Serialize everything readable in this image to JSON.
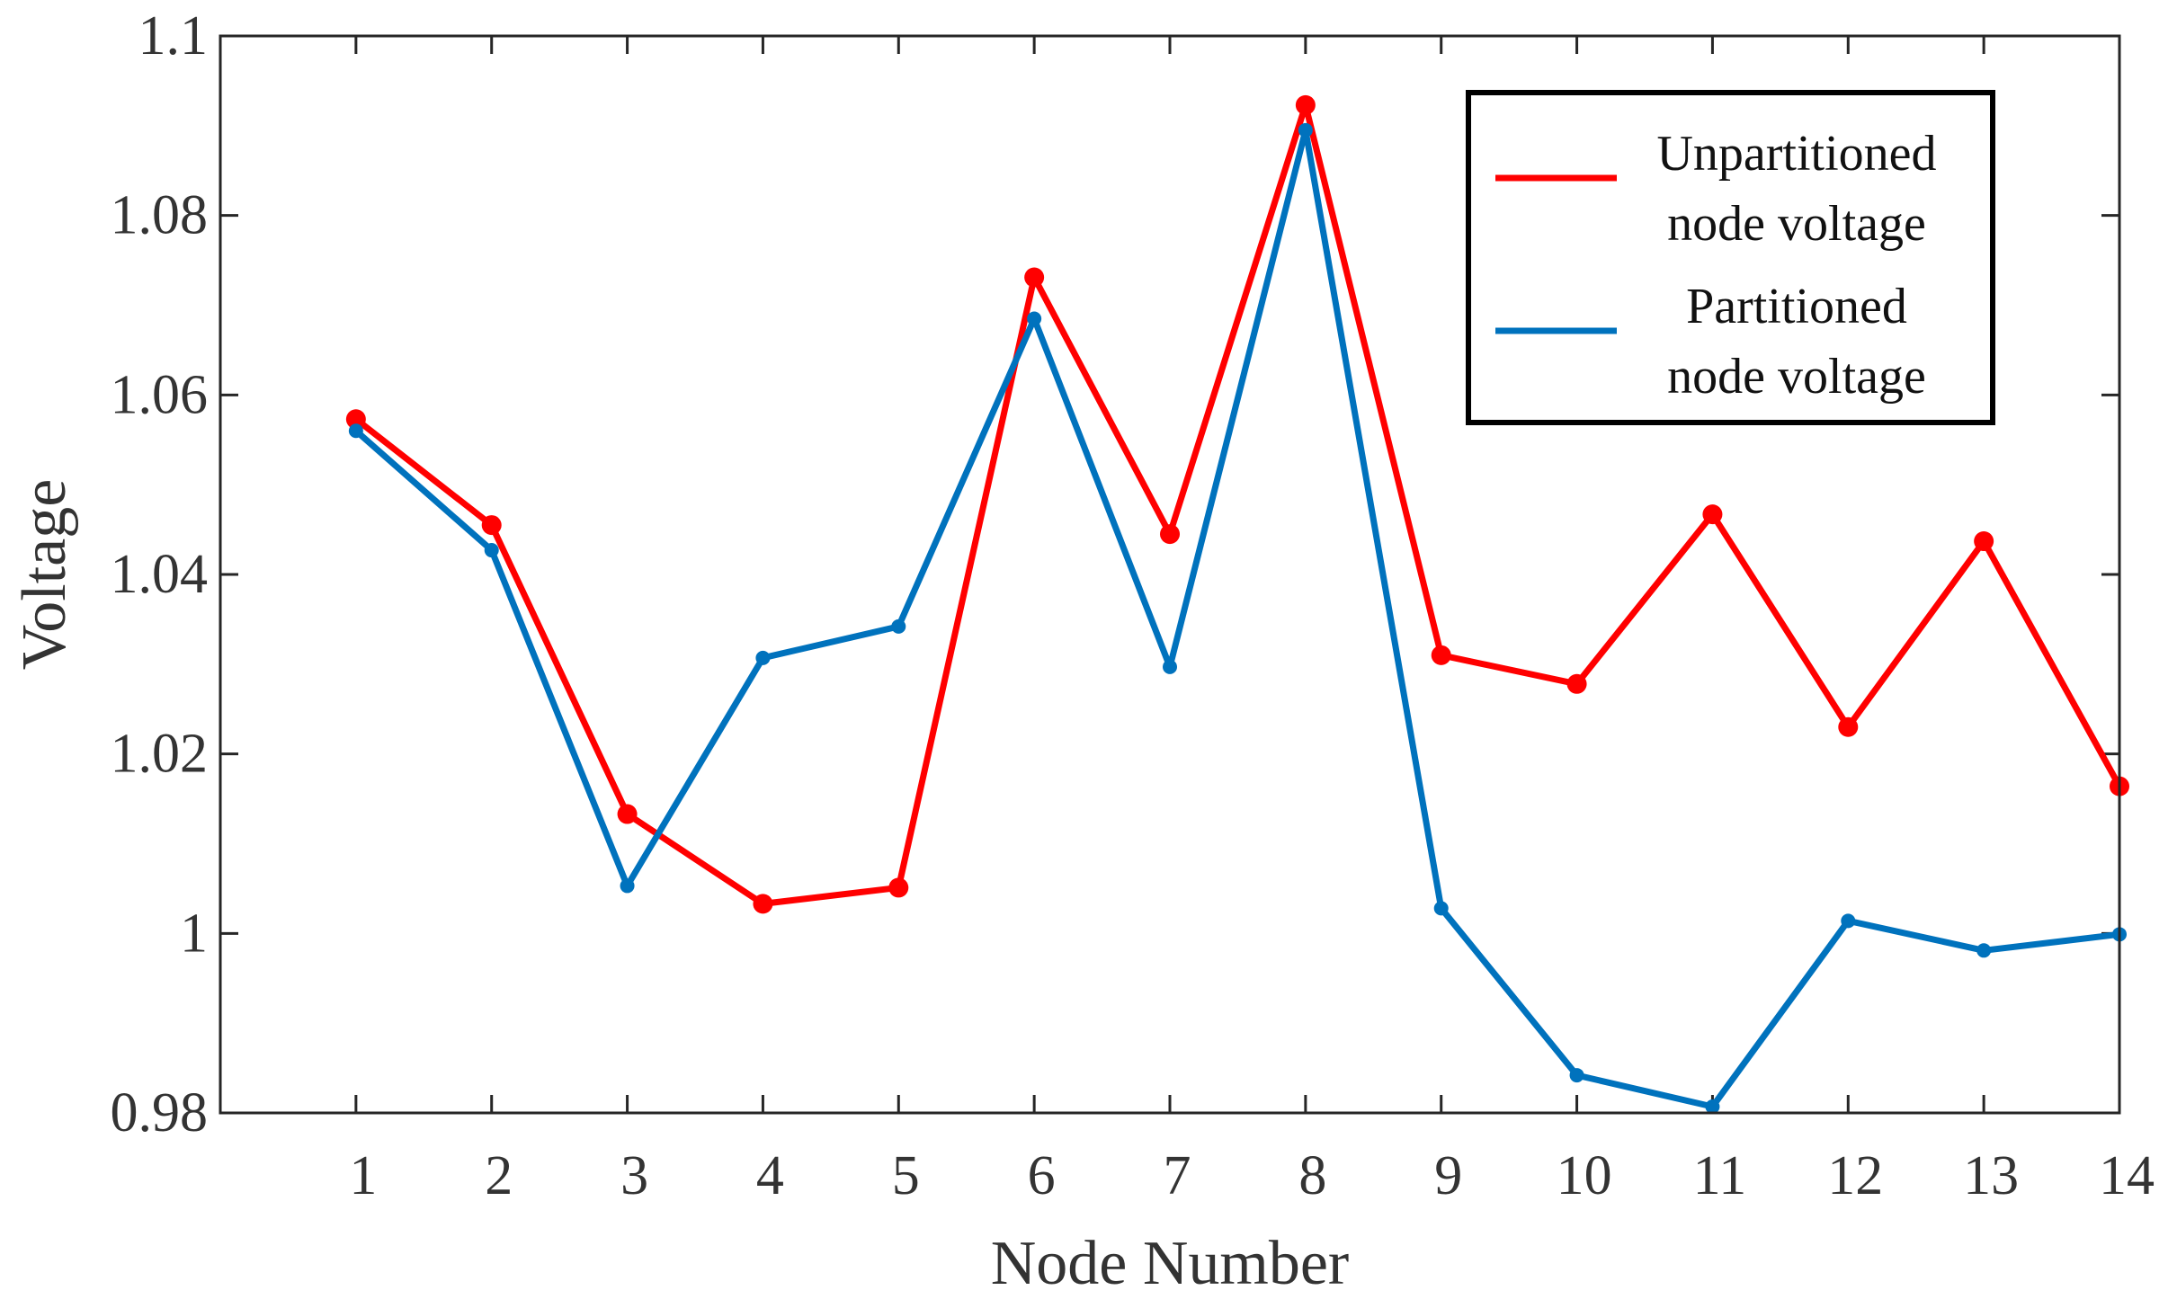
{
  "chart_data": {
    "type": "line",
    "x": [
      1,
      2,
      3,
      4,
      5,
      6,
      7,
      8,
      9,
      10,
      11,
      12,
      13,
      14
    ],
    "xlabel": "Node Number",
    "ylabel": "Voltage",
    "xlim": [
      0,
      14
    ],
    "ylim": [
      0.98,
      1.1
    ],
    "xticks": [
      "1",
      "2",
      "3",
      "4",
      "5",
      "6",
      "7",
      "8",
      "9",
      "10",
      "11",
      "12",
      "13",
      "14"
    ],
    "yticks": [
      {
        "value": 0.98,
        "label": "0.98"
      },
      {
        "value": 1.0,
        "label": "1"
      },
      {
        "value": 1.02,
        "label": "1.02"
      },
      {
        "value": 1.04,
        "label": "1.04"
      },
      {
        "value": 1.06,
        "label": "1.06"
      },
      {
        "value": 1.08,
        "label": "1.08"
      },
      {
        "value": 1.1,
        "label": "1.1"
      }
    ],
    "grid": false,
    "legend_position": "top-right",
    "series": [
      {
        "name_lines": [
          "Unpartitioned",
          "node voltage"
        ],
        "color": "#ff0000",
        "marker": "circle-large",
        "values": [
          1.0573,
          1.0455,
          1.0133,
          1.0033,
          1.0051,
          1.0731,
          1.0445,
          1.0923,
          1.031,
          1.0278,
          1.0467,
          1.023,
          1.0437,
          1.0164
        ]
      },
      {
        "name_lines": [
          "Partitioned",
          "node voltage"
        ],
        "color": "#0072bd",
        "marker": "circle-small",
        "values": [
          1.056,
          1.0427,
          1.0053,
          1.0307,
          1.0342,
          1.0685,
          1.0297,
          1.0895,
          1.0028,
          0.9842,
          0.9807,
          1.0014,
          0.9981,
          0.9999
        ]
      }
    ]
  }
}
